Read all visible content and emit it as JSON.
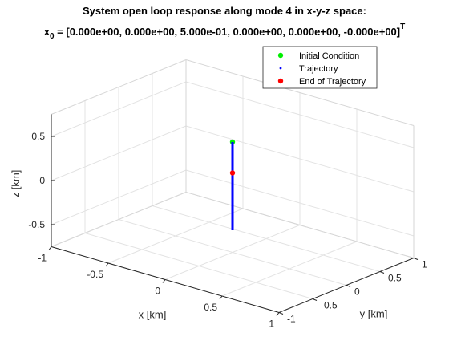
{
  "chart_data": {
    "type": "scatter",
    "projection": "3d",
    "title_line1": "System open loop response along mode 4 in x-y-z space:",
    "title_line2_prefix": "x",
    "title_line2_subscript": "0",
    "title_line2_body": " = [0.000e+00, 0.000e+00, 5.000e-01, 0.000e+00, 0.000e+00, -0.000e+00]",
    "title_line2_superscript": "T",
    "xlabel": "x [km]",
    "ylabel": "y [km]",
    "zlabel": "z [km]",
    "xlim": [
      -1,
      1
    ],
    "ylim": [
      -1,
      1
    ],
    "zlim": [
      -0.75,
      0.75
    ],
    "x_ticks": [
      "-1",
      "-0.5",
      "0",
      "0.5",
      "1"
    ],
    "y_ticks": [
      "-1",
      "-0.5",
      "0",
      "0.5",
      "1"
    ],
    "z_ticks": [
      "-0.5",
      "0",
      "0.5"
    ],
    "grid": true,
    "legend_position": "top-right",
    "legend": [
      {
        "label": "Initial Condition",
        "marker": "dot",
        "color": "#00ee00"
      },
      {
        "label": "Trajectory",
        "marker": "point",
        "color": "#0000ff"
      },
      {
        "label": "End of Trajectory",
        "marker": "dot",
        "color": "#ff0000"
      }
    ],
    "series": [
      {
        "name": "Initial Condition",
        "color": "#00ee00",
        "points": [
          {
            "x": 0,
            "y": 0,
            "z": 0.5
          }
        ]
      },
      {
        "name": "Trajectory",
        "color": "#0000ff",
        "line": true,
        "points": [
          {
            "x": 0,
            "y": 0,
            "z": 0.5
          },
          {
            "x": 0,
            "y": 0,
            "z": -0.5
          }
        ]
      },
      {
        "name": "End of Trajectory",
        "color": "#ff0000",
        "points": [
          {
            "x": 0,
            "y": 0,
            "z": 0.15
          }
        ]
      }
    ]
  }
}
